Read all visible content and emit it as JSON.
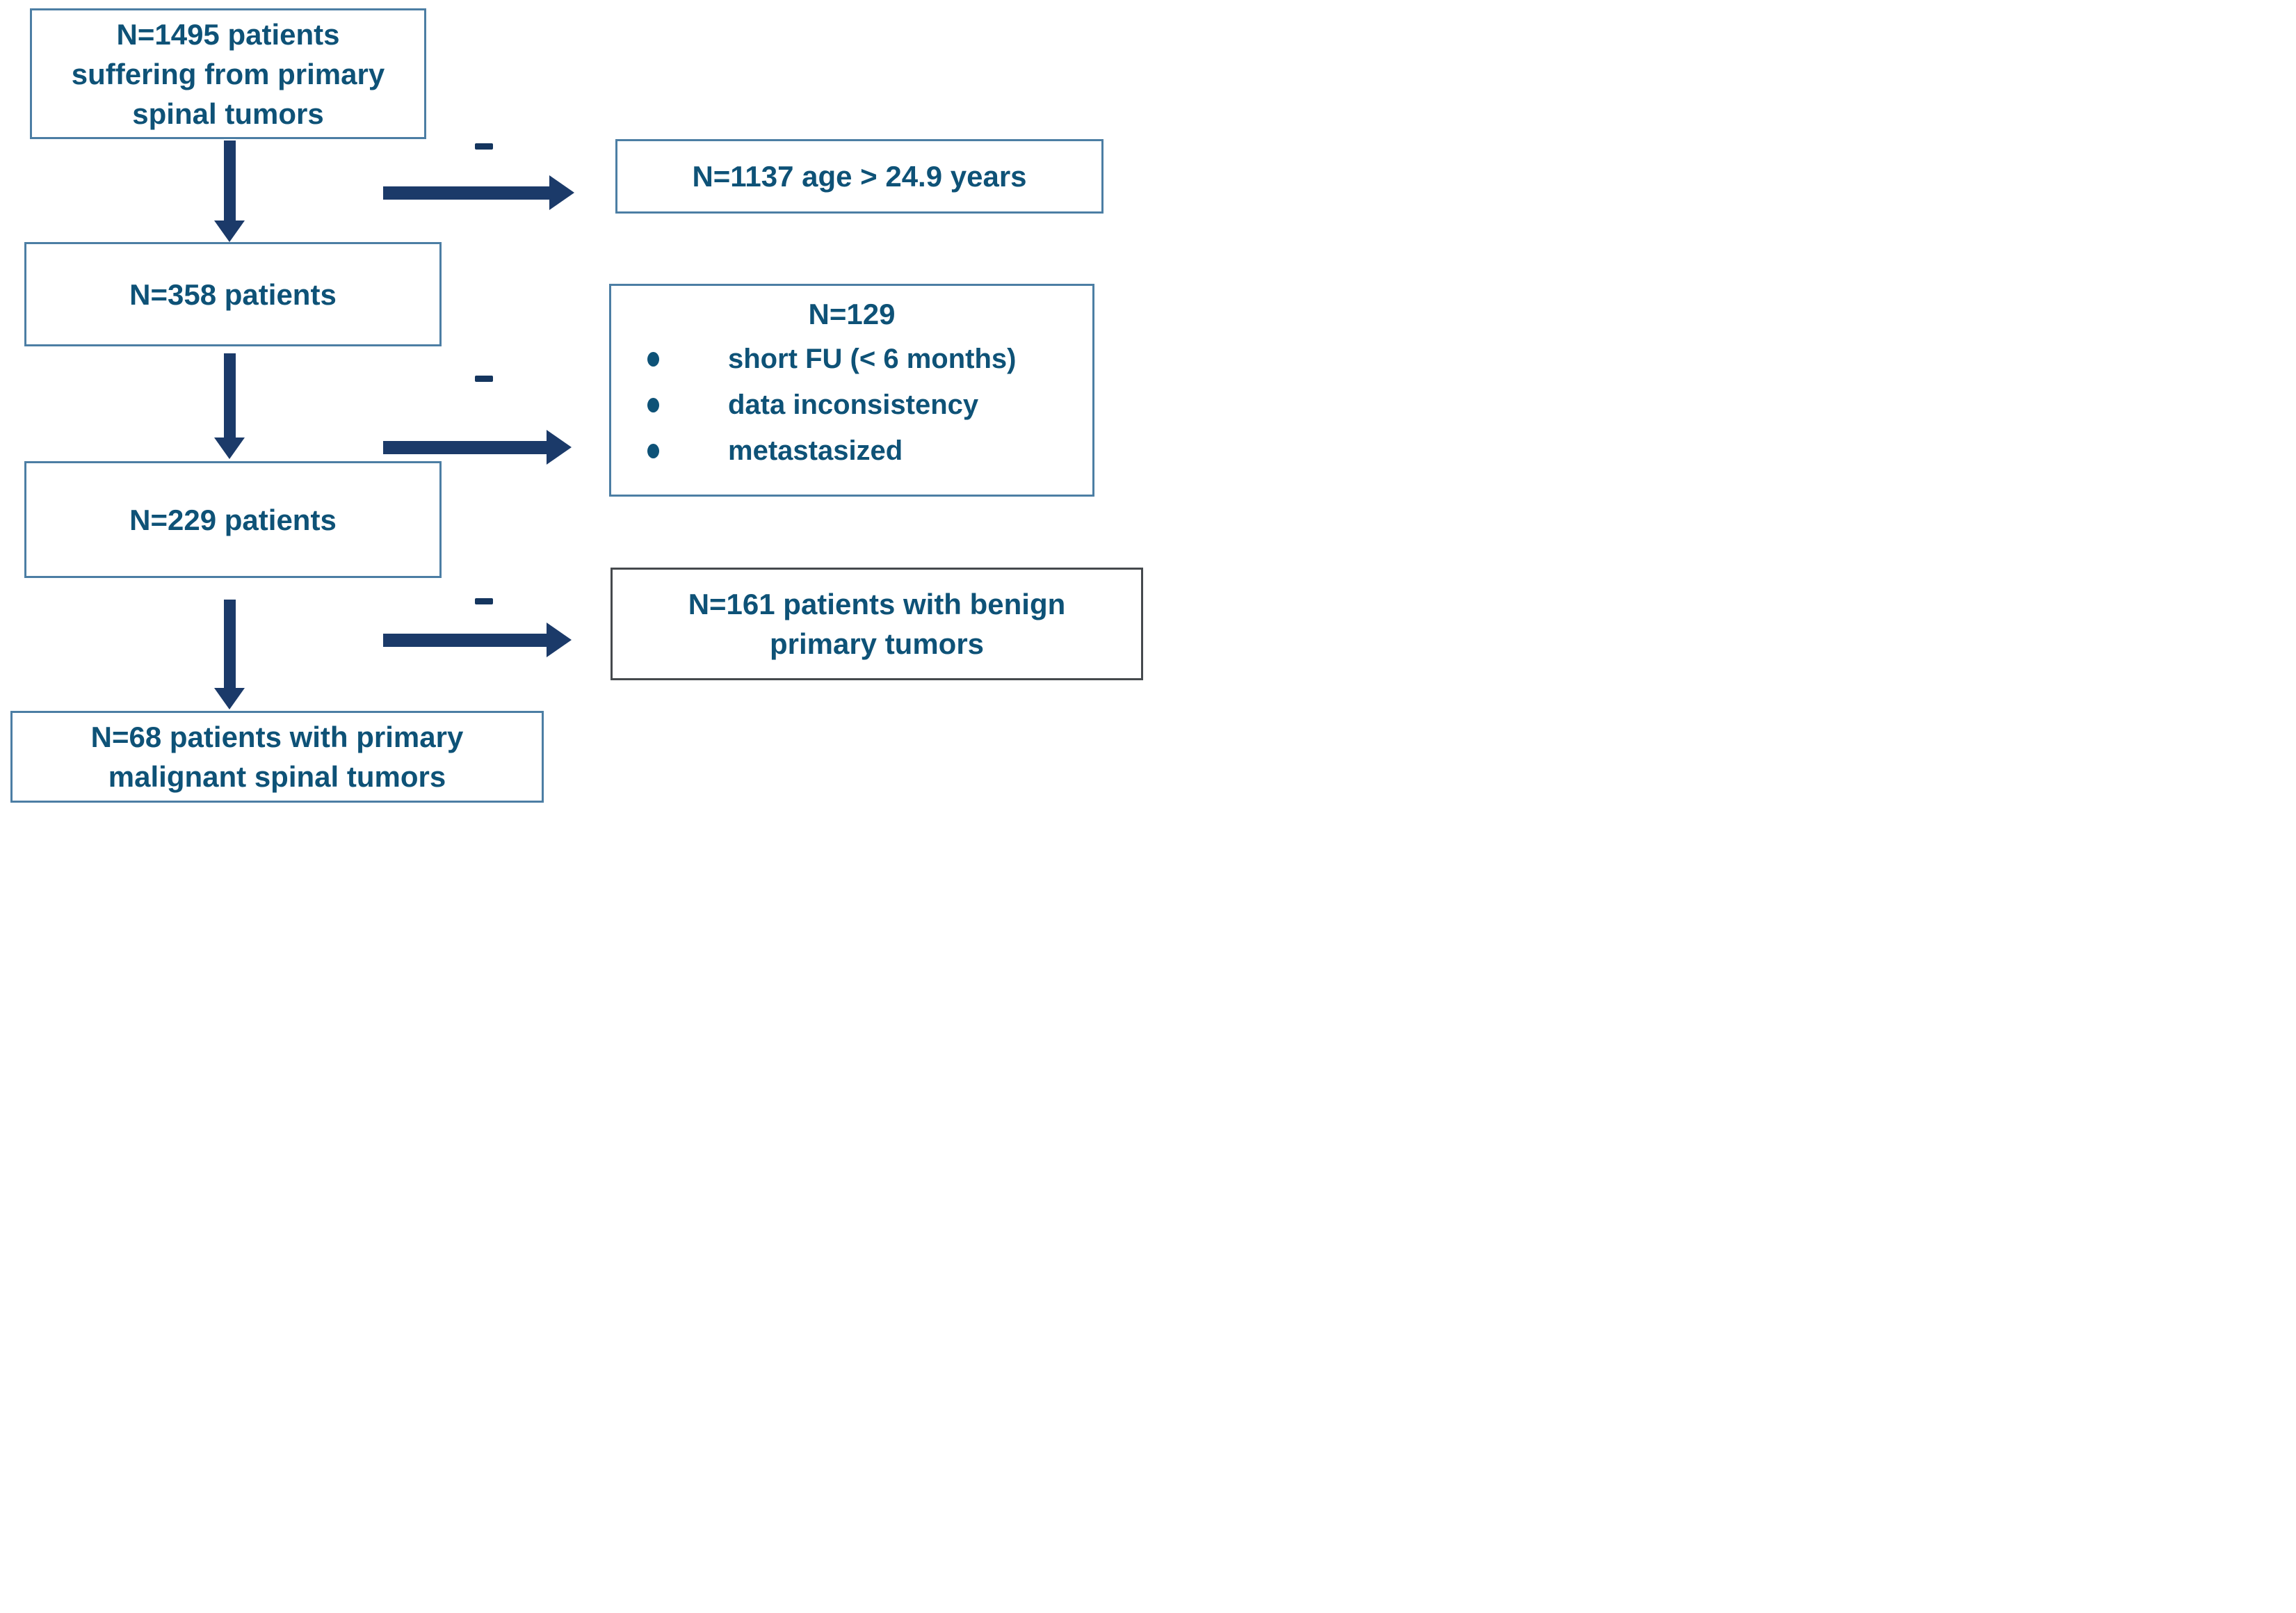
{
  "colors": {
    "text": "#0e5277",
    "arrow": "#1b3a69",
    "minus": "#14355e",
    "box_border_light": "#4c7ea4",
    "box_border_dark": "#45494d",
    "background": "#ffffff"
  },
  "flow": {
    "boxes": [
      {
        "id": "total-patients",
        "lines": [
          "N=1495 patients",
          "suffering from primary",
          "spinal tumors"
        ]
      },
      {
        "id": "after-age-filter",
        "lines": [
          "N=358 patients"
        ]
      },
      {
        "id": "after-exclusions",
        "lines": [
          "N=229 patients"
        ]
      },
      {
        "id": "final-cohort",
        "lines": [
          "N=68 patients with primary",
          "malignant spinal tumors"
        ]
      }
    ],
    "exclusions": [
      {
        "id": "age-exclusion",
        "lines": [
          "N=1137 age > 24.9 years"
        ]
      },
      {
        "id": "other-exclusions",
        "title": "N=129",
        "bullets": [
          "short FU (< 6 months)",
          "data inconsistency",
          "metastasized"
        ]
      },
      {
        "id": "benign-exclusion",
        "lines": [
          "N=161 patients with benign",
          "primary tumors"
        ]
      }
    ],
    "symbols": {
      "exclusion_sign": "minus",
      "flow_connector": "down-arrow",
      "exclusion_connector": "right-arrow"
    }
  }
}
